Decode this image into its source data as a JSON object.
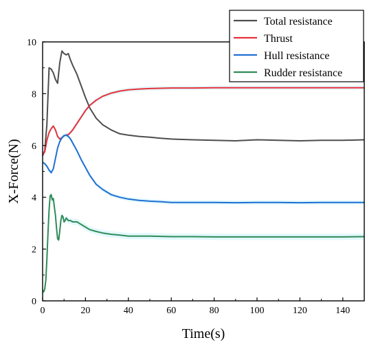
{
  "chart_data": {
    "type": "line",
    "title": "",
    "xlabel": "Time(s)",
    "ylabel": "X-Force(N)",
    "xlim": [
      0,
      150
    ],
    "ylim": [
      0,
      10
    ],
    "xticks": [
      0,
      20,
      40,
      60,
      80,
      100,
      120,
      140
    ],
    "yticks": [
      0,
      2,
      4,
      6,
      8,
      10
    ],
    "grid": false,
    "legend_position": "top-right",
    "series": [
      {
        "name": "Total resistance",
        "color": "#4d4d4d",
        "x": [
          0,
          1,
          2,
          3,
          4,
          5,
          6,
          7,
          8,
          9,
          10,
          11,
          12,
          13,
          14,
          16,
          18,
          20,
          22,
          25,
          28,
          32,
          36,
          40,
          45,
          50,
          55,
          60,
          70,
          80,
          90,
          100,
          110,
          120,
          130,
          140,
          150
        ],
        "y": [
          5.6,
          5.8,
          6.8,
          9.0,
          8.95,
          8.8,
          8.55,
          8.4,
          9.2,
          9.65,
          9.55,
          9.5,
          9.55,
          9.3,
          9.1,
          8.75,
          8.3,
          7.85,
          7.45,
          7.05,
          6.8,
          6.6,
          6.45,
          6.4,
          6.35,
          6.32,
          6.28,
          6.25,
          6.22,
          6.2,
          6.18,
          6.22,
          6.2,
          6.18,
          6.2,
          6.2,
          6.22
        ]
      },
      {
        "name": "Thrust",
        "color": "#e8303a",
        "x": [
          0,
          1,
          2,
          3,
          4,
          5,
          6,
          7,
          8,
          9,
          10,
          11,
          12,
          13,
          14,
          16,
          18,
          20,
          22,
          25,
          28,
          32,
          36,
          40,
          45,
          50,
          55,
          60,
          70,
          80,
          90,
          100,
          110,
          120,
          130,
          140,
          150
        ],
        "y": [
          5.65,
          5.75,
          6.2,
          6.5,
          6.65,
          6.75,
          6.6,
          6.35,
          6.25,
          6.3,
          6.38,
          6.4,
          6.42,
          6.5,
          6.6,
          6.85,
          7.1,
          7.35,
          7.55,
          7.75,
          7.9,
          8.02,
          8.1,
          8.15,
          8.18,
          8.2,
          8.21,
          8.22,
          8.22,
          8.23,
          8.23,
          8.23,
          8.23,
          8.23,
          8.23,
          8.23,
          8.23
        ]
      },
      {
        "name": "Hull resistance",
        "color": "#1f6fd1",
        "x": [
          0,
          1,
          2,
          3,
          4,
          5,
          6,
          7,
          8,
          9,
          10,
          11,
          12,
          13,
          14,
          16,
          18,
          20,
          22,
          25,
          28,
          32,
          36,
          40,
          45,
          50,
          55,
          60,
          70,
          80,
          90,
          100,
          110,
          120,
          130,
          140,
          150
        ],
        "y": [
          5.35,
          5.3,
          5.2,
          5.05,
          4.95,
          5.1,
          5.5,
          5.9,
          6.15,
          6.3,
          6.38,
          6.4,
          6.35,
          6.25,
          6.1,
          5.8,
          5.45,
          5.15,
          4.85,
          4.5,
          4.3,
          4.1,
          4.0,
          3.93,
          3.88,
          3.85,
          3.83,
          3.8,
          3.8,
          3.8,
          3.79,
          3.8,
          3.8,
          3.79,
          3.8,
          3.8,
          3.8
        ]
      },
      {
        "name": "Rudder resistance",
        "color": "#2e8b57",
        "x": [
          0,
          0.5,
          1,
          1.5,
          2,
          2.5,
          3,
          3.5,
          4,
          4.5,
          5,
          5.5,
          6,
          6.5,
          7,
          7.5,
          8,
          8.5,
          9,
          9.5,
          10,
          10.5,
          11,
          11.5,
          12,
          13,
          14,
          16,
          18,
          20,
          22,
          25,
          28,
          32,
          36,
          40,
          45,
          50,
          55,
          60,
          70,
          80,
          90,
          100,
          110,
          120,
          130,
          140,
          150
        ],
        "y": [
          0.4,
          0.35,
          0.45,
          0.8,
          1.6,
          2.6,
          3.5,
          4.05,
          4.1,
          3.9,
          3.95,
          3.6,
          3.3,
          2.8,
          2.4,
          2.35,
          2.7,
          3.1,
          3.3,
          3.25,
          3.05,
          3.1,
          3.2,
          3.15,
          3.1,
          3.1,
          3.05,
          3.05,
          2.95,
          2.85,
          2.75,
          2.68,
          2.62,
          2.57,
          2.54,
          2.5,
          2.5,
          2.5,
          2.49,
          2.48,
          2.48,
          2.47,
          2.47,
          2.47,
          2.47,
          2.47,
          2.47,
          2.47,
          2.48
        ]
      }
    ]
  }
}
